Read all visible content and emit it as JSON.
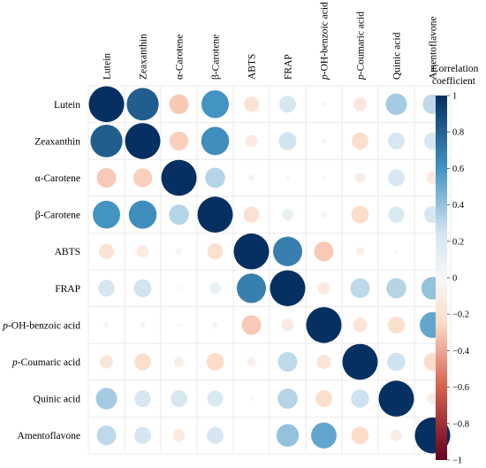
{
  "chart_data": {
    "type": "heatmap",
    "style": "circle-correlogram",
    "variables": [
      {
        "prefix": "",
        "name": "Lutein"
      },
      {
        "prefix": "",
        "name": "Zeaxanthin"
      },
      {
        "prefix": "",
        "name": "α-Carotene"
      },
      {
        "prefix": "",
        "name": "β-Carotene"
      },
      {
        "prefix": "",
        "name": "ABTS"
      },
      {
        "prefix": "",
        "name": "FRAP"
      },
      {
        "prefix": "p",
        "name": "-OH-benzoic acid"
      },
      {
        "prefix": "p",
        "name": "-Coumaric acid"
      },
      {
        "prefix": "",
        "name": "Quinic acid"
      },
      {
        "prefix": "",
        "name": "Amentoflavone"
      }
    ],
    "matrix": [
      [
        1.0,
        0.82,
        -0.3,
        0.6,
        -0.18,
        0.22,
        -0.02,
        -0.14,
        0.36,
        0.3
      ],
      [
        0.82,
        1.0,
        -0.28,
        0.62,
        -0.12,
        0.25,
        -0.02,
        -0.22,
        0.22,
        0.22
      ],
      [
        -0.3,
        -0.28,
        1.0,
        0.32,
        0.03,
        0.01,
        0.01,
        -0.08,
        0.22,
        -0.12
      ],
      [
        0.6,
        0.62,
        0.32,
        1.0,
        -0.2,
        0.1,
        -0.03,
        -0.24,
        0.2,
        0.22
      ],
      [
        -0.18,
        -0.12,
        0.03,
        -0.2,
        1.0,
        0.68,
        -0.3,
        -0.06,
        0.01,
        0.0
      ],
      [
        0.22,
        0.25,
        0.01,
        0.1,
        0.68,
        1.0,
        -0.12,
        0.3,
        0.32,
        0.4
      ],
      [
        -0.02,
        -0.02,
        0.01,
        -0.03,
        -0.3,
        -0.12,
        1.0,
        -0.16,
        -0.22,
        0.52
      ],
      [
        -0.14,
        -0.22,
        -0.08,
        -0.24,
        -0.06,
        0.3,
        -0.16,
        1.0,
        0.26,
        -0.24
      ],
      [
        0.36,
        0.22,
        0.22,
        0.2,
        0.01,
        0.32,
        -0.22,
        0.26,
        1.0,
        -0.1
      ],
      [
        0.3,
        0.22,
        -0.12,
        0.22,
        0.0,
        0.4,
        0.52,
        -0.24,
        -0.1,
        1.0
      ]
    ],
    "range": [
      -1,
      1
    ],
    "legend": {
      "title_lines": [
        "Correlation",
        "coefficient"
      ],
      "ticks": [
        "1",
        "0.8",
        "0.6",
        "0.4",
        "0.2",
        "0",
        "−0.2",
        "−0.4",
        "−0.6",
        "−0.8",
        "−1"
      ],
      "tick_values": [
        1,
        0.8,
        0.6,
        0.4,
        0.2,
        0,
        -0.2,
        -0.4,
        -0.6,
        -0.8,
        -1
      ],
      "placement": "right"
    },
    "colors": {
      "positive_max": "#053061",
      "positive_mid": "#4393c3",
      "positive_light": "#d1e5f0",
      "neutral": "#f7f7f7",
      "negative_light": "#fddbc7",
      "negative_mid": "#d6604d",
      "negative_max": "#67001f",
      "grid": "#ebebeb"
    }
  }
}
